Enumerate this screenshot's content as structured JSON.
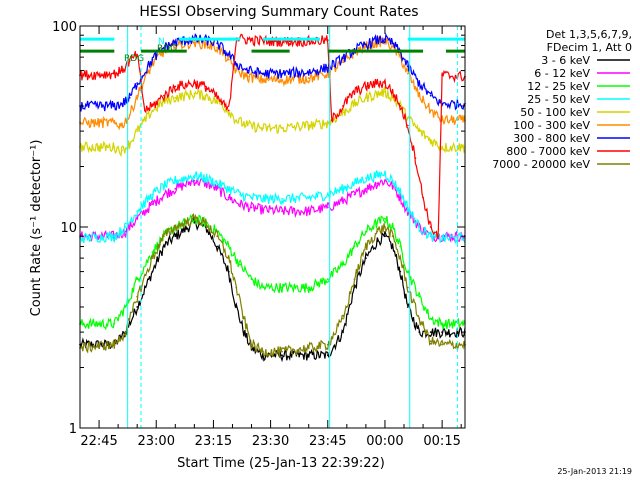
{
  "chart_data": {
    "type": "line",
    "title": "HESSI Observing Summary Count Rates",
    "xlabel": "Start Time (25-Jan-13 22:39:22)",
    "ylabel": "Count Rate (s⁻¹ detector⁻¹)",
    "yscale": "log",
    "ylim": [
      1,
      100
    ],
    "xlim_minutes": [
      -5,
      96
    ],
    "x_ticks": [
      {
        "m": 0,
        "label": "22:45"
      },
      {
        "m": 15,
        "label": "23:00"
      },
      {
        "m": 30,
        "label": "23:15"
      },
      {
        "m": 45,
        "label": "23:30"
      },
      {
        "m": 60,
        "label": "23:45"
      },
      {
        "m": 75,
        "label": "00:00"
      },
      {
        "m": 90,
        "label": "00:15"
      }
    ],
    "y_ticks": [
      {
        "v": 1,
        "label": "1"
      },
      {
        "v": 10,
        "label": "10"
      },
      {
        "v": 100,
        "label": "100"
      }
    ],
    "legend_title_lines": [
      "Det 1,3,5,6,7,9,",
      "FDecim 1, Att 0"
    ],
    "grid": false,
    "legend_position": "right",
    "series": [
      {
        "name": "3 - 6 keV",
        "color": "#000000",
        "values": [
          [
            -5,
            2.6
          ],
          [
            4,
            2.6
          ],
          [
            7,
            3
          ],
          [
            10,
            4
          ],
          [
            14,
            6
          ],
          [
            17,
            8
          ],
          [
            20,
            9
          ],
          [
            25,
            10.5
          ],
          [
            28,
            10
          ],
          [
            31,
            8
          ],
          [
            34,
            6
          ],
          [
            36,
            4
          ],
          [
            38,
            3
          ],
          [
            40,
            2.5
          ],
          [
            43,
            2.3
          ],
          [
            48,
            2.3
          ],
          [
            55,
            2.3
          ],
          [
            60,
            2.3
          ],
          [
            64,
            3
          ],
          [
            67,
            5
          ],
          [
            70,
            7
          ],
          [
            73,
            8.5
          ],
          [
            75,
            9
          ],
          [
            77,
            8
          ],
          [
            79,
            6
          ],
          [
            81,
            4
          ],
          [
            84,
            3
          ],
          [
            87,
            3
          ],
          [
            90,
            3
          ],
          [
            96,
            3
          ]
        ]
      },
      {
        "name": "6 - 12 keV",
        "color": "#ff00ff",
        "values": [
          [
            -5,
            9
          ],
          [
            4,
            9
          ],
          [
            7,
            9.5
          ],
          [
            10,
            11
          ],
          [
            14,
            13
          ],
          [
            17,
            14.5
          ],
          [
            20,
            15.5
          ],
          [
            25,
            17
          ],
          [
            28,
            16.5
          ],
          [
            31,
            15.5
          ],
          [
            34,
            14
          ],
          [
            37,
            13
          ],
          [
            40,
            12.5
          ],
          [
            43,
            12.2
          ],
          [
            48,
            12
          ],
          [
            55,
            12
          ],
          [
            60,
            12.5
          ],
          [
            64,
            13.5
          ],
          [
            67,
            14.5
          ],
          [
            70,
            15.5
          ],
          [
            73,
            16.5
          ],
          [
            75,
            17
          ],
          [
            77,
            16
          ],
          [
            79,
            14
          ],
          [
            81,
            12
          ],
          [
            84,
            10
          ],
          [
            87,
            9
          ],
          [
            90,
            9
          ],
          [
            96,
            9
          ]
        ]
      },
      {
        "name": "12 - 25 keV",
        "color": "#00ff00",
        "values": [
          [
            -5,
            3.3
          ],
          [
            4,
            3.3
          ],
          [
            7,
            4
          ],
          [
            10,
            5.5
          ],
          [
            14,
            7.5
          ],
          [
            17,
            9
          ],
          [
            20,
            10
          ],
          [
            25,
            11
          ],
          [
            28,
            10.5
          ],
          [
            31,
            9.5
          ],
          [
            34,
            8
          ],
          [
            37,
            6.5
          ],
          [
            40,
            5.5
          ],
          [
            43,
            5
          ],
          [
            48,
            5
          ],
          [
            55,
            5
          ],
          [
            60,
            5.5
          ],
          [
            64,
            6.5
          ],
          [
            67,
            8
          ],
          [
            70,
            9.5
          ],
          [
            73,
            10.5
          ],
          [
            75,
            11
          ],
          [
            77,
            10
          ],
          [
            79,
            8
          ],
          [
            81,
            6
          ],
          [
            84,
            4.5
          ],
          [
            87,
            3.5
          ],
          [
            90,
            3.3
          ],
          [
            96,
            3.3
          ]
        ]
      },
      {
        "name": "25 - 50 keV",
        "color": "#00ffff",
        "values": [
          [
            -5,
            8.8
          ],
          [
            4,
            9
          ],
          [
            7,
            10
          ],
          [
            10,
            12
          ],
          [
            14,
            14.5
          ],
          [
            17,
            16
          ],
          [
            20,
            17
          ],
          [
            25,
            18
          ],
          [
            28,
            17.5
          ],
          [
            31,
            16.5
          ],
          [
            34,
            15.5
          ],
          [
            37,
            14.5
          ],
          [
            40,
            14
          ],
          [
            43,
            13.8
          ],
          [
            48,
            13.8
          ],
          [
            55,
            14
          ],
          [
            60,
            14.5
          ],
          [
            64,
            15.5
          ],
          [
            67,
            16.5
          ],
          [
            70,
            17.5
          ],
          [
            73,
            18
          ],
          [
            75,
            18.5
          ],
          [
            77,
            17
          ],
          [
            79,
            15
          ],
          [
            81,
            12.5
          ],
          [
            84,
            10
          ],
          [
            87,
            9
          ],
          [
            90,
            8.8
          ],
          [
            96,
            8.8
          ]
        ]
      },
      {
        "name": "50 - 100 keV",
        "color": "#d4d400",
        "values": [
          [
            -5,
            25
          ],
          [
            4,
            25
          ],
          [
            6,
            24
          ],
          [
            8,
            26
          ],
          [
            10,
            30
          ],
          [
            14,
            38
          ],
          [
            17,
            42
          ],
          [
            20,
            44
          ],
          [
            25,
            46
          ],
          [
            28,
            45
          ],
          [
            31,
            42
          ],
          [
            34,
            38
          ],
          [
            36,
            34
          ],
          [
            39,
            32
          ],
          [
            43,
            31
          ],
          [
            48,
            31
          ],
          [
            55,
            32
          ],
          [
            60,
            33
          ],
          [
            64,
            37
          ],
          [
            67,
            41
          ],
          [
            70,
            44
          ],
          [
            73,
            46
          ],
          [
            75,
            47
          ],
          [
            77,
            44
          ],
          [
            79,
            40
          ],
          [
            81,
            35
          ],
          [
            84,
            30
          ],
          [
            87,
            27
          ],
          [
            90,
            25
          ],
          [
            96,
            25
          ]
        ]
      },
      {
        "name": "100 - 300 keV",
        "color": "#ff8c00",
        "values": [
          [
            -5,
            33
          ],
          [
            4,
            33
          ],
          [
            6,
            32
          ],
          [
            8,
            36
          ],
          [
            10,
            45
          ],
          [
            14,
            65
          ],
          [
            17,
            75
          ],
          [
            20,
            80
          ],
          [
            25,
            83
          ],
          [
            28,
            81
          ],
          [
            31,
            78
          ],
          [
            34,
            68
          ],
          [
            36,
            60
          ],
          [
            39,
            56
          ],
          [
            43,
            54
          ],
          [
            48,
            54
          ],
          [
            55,
            55
          ],
          [
            60,
            58
          ],
          [
            64,
            66
          ],
          [
            67,
            74
          ],
          [
            70,
            79
          ],
          [
            73,
            83
          ],
          [
            75,
            84
          ],
          [
            77,
            79
          ],
          [
            79,
            70
          ],
          [
            81,
            58
          ],
          [
            84,
            45
          ],
          [
            87,
            38
          ],
          [
            90,
            34
          ],
          [
            96,
            34
          ]
        ]
      },
      {
        "name": "300 - 800 keV",
        "color": "#0000ff",
        "values": [
          [
            -5,
            40
          ],
          [
            4,
            40
          ],
          [
            6,
            41
          ],
          [
            8,
            44
          ],
          [
            10,
            52
          ],
          [
            14,
            68
          ],
          [
            17,
            78
          ],
          [
            20,
            83
          ],
          [
            25,
            86
          ],
          [
            28,
            85
          ],
          [
            31,
            82
          ],
          [
            34,
            72
          ],
          [
            36,
            65
          ],
          [
            39,
            60
          ],
          [
            43,
            58
          ],
          [
            48,
            58
          ],
          [
            55,
            59
          ],
          [
            60,
            62
          ],
          [
            64,
            69
          ],
          [
            67,
            76
          ],
          [
            70,
            81
          ],
          [
            73,
            85
          ],
          [
            75,
            86
          ],
          [
            77,
            82
          ],
          [
            79,
            74
          ],
          [
            81,
            63
          ],
          [
            84,
            52
          ],
          [
            87,
            45
          ],
          [
            90,
            41
          ],
          [
            96,
            41
          ]
        ]
      },
      {
        "name": "800 - 7000 keV",
        "color": "#ff0000",
        "values": [
          [
            -5,
            57
          ],
          [
            4,
            58
          ],
          [
            6,
            60
          ],
          [
            8,
            67
          ],
          [
            10,
            72
          ],
          [
            12,
            38
          ],
          [
            14,
            40
          ],
          [
            17,
            45
          ],
          [
            20,
            50
          ],
          [
            25,
            52
          ],
          [
            28,
            50
          ],
          [
            31,
            44
          ],
          [
            34,
            38
          ],
          [
            36,
            87
          ],
          [
            40,
            85
          ],
          [
            45,
            84
          ],
          [
            50,
            84
          ],
          [
            55,
            84
          ],
          [
            60,
            85
          ],
          [
            61,
            34
          ],
          [
            64,
            40
          ],
          [
            67,
            47
          ],
          [
            70,
            50
          ],
          [
            73,
            52
          ],
          [
            75,
            52
          ],
          [
            77,
            47
          ],
          [
            79,
            40
          ],
          [
            81,
            32
          ],
          [
            83,
            22
          ],
          [
            85,
            14
          ],
          [
            87,
            10
          ],
          [
            89,
            9
          ],
          [
            90,
            57
          ],
          [
            96,
            56
          ]
        ]
      },
      {
        "name": "7000 - 20000 keV",
        "color": "#808000",
        "values": [
          [
            -5,
            2.5
          ],
          [
            4,
            2.6
          ],
          [
            7,
            3
          ],
          [
            10,
            4.5
          ],
          [
            14,
            7
          ],
          [
            17,
            9
          ],
          [
            20,
            10
          ],
          [
            25,
            11
          ],
          [
            28,
            10.5
          ],
          [
            31,
            9
          ],
          [
            34,
            7
          ],
          [
            36,
            5
          ],
          [
            38,
            3.5
          ],
          [
            40,
            2.6
          ],
          [
            43,
            2.4
          ],
          [
            48,
            2.4
          ],
          [
            55,
            2.5
          ],
          [
            60,
            2.6
          ],
          [
            64,
            3.5
          ],
          [
            67,
            5.5
          ],
          [
            70,
            8
          ],
          [
            73,
            9.5
          ],
          [
            75,
            10
          ],
          [
            77,
            9
          ],
          [
            79,
            7
          ],
          [
            81,
            5
          ],
          [
            84,
            3.5
          ],
          [
            87,
            2.7
          ],
          [
            90,
            2.6
          ],
          [
            96,
            2.6
          ]
        ]
      }
    ],
    "flags": {
      "saa": {
        "color": "#00ffff",
        "label": "SAA",
        "labels_shown": [
          "N"
        ],
        "y": 86,
        "segments": [
          [
            -5,
            4
          ],
          [
            21,
            37
          ],
          [
            43,
            58
          ],
          [
            81,
            96
          ]
        ]
      },
      "radiation": {
        "color": "#008000",
        "label": "RDG",
        "labels_shown": [
          "RDG",
          "RDG"
        ],
        "y": 75,
        "segments": [
          [
            -5,
            4
          ],
          [
            11,
            23
          ],
          [
            40,
            50
          ],
          [
            60,
            85
          ],
          [
            91,
            96
          ]
        ]
      }
    },
    "vlines": {
      "cyan_solid": [
        7.5,
        60.5,
        81.5
      ],
      "cyan_dashed": [
        11,
        94
      ]
    }
  },
  "footer": {
    "date": "25-Jan-2013 21:19"
  }
}
